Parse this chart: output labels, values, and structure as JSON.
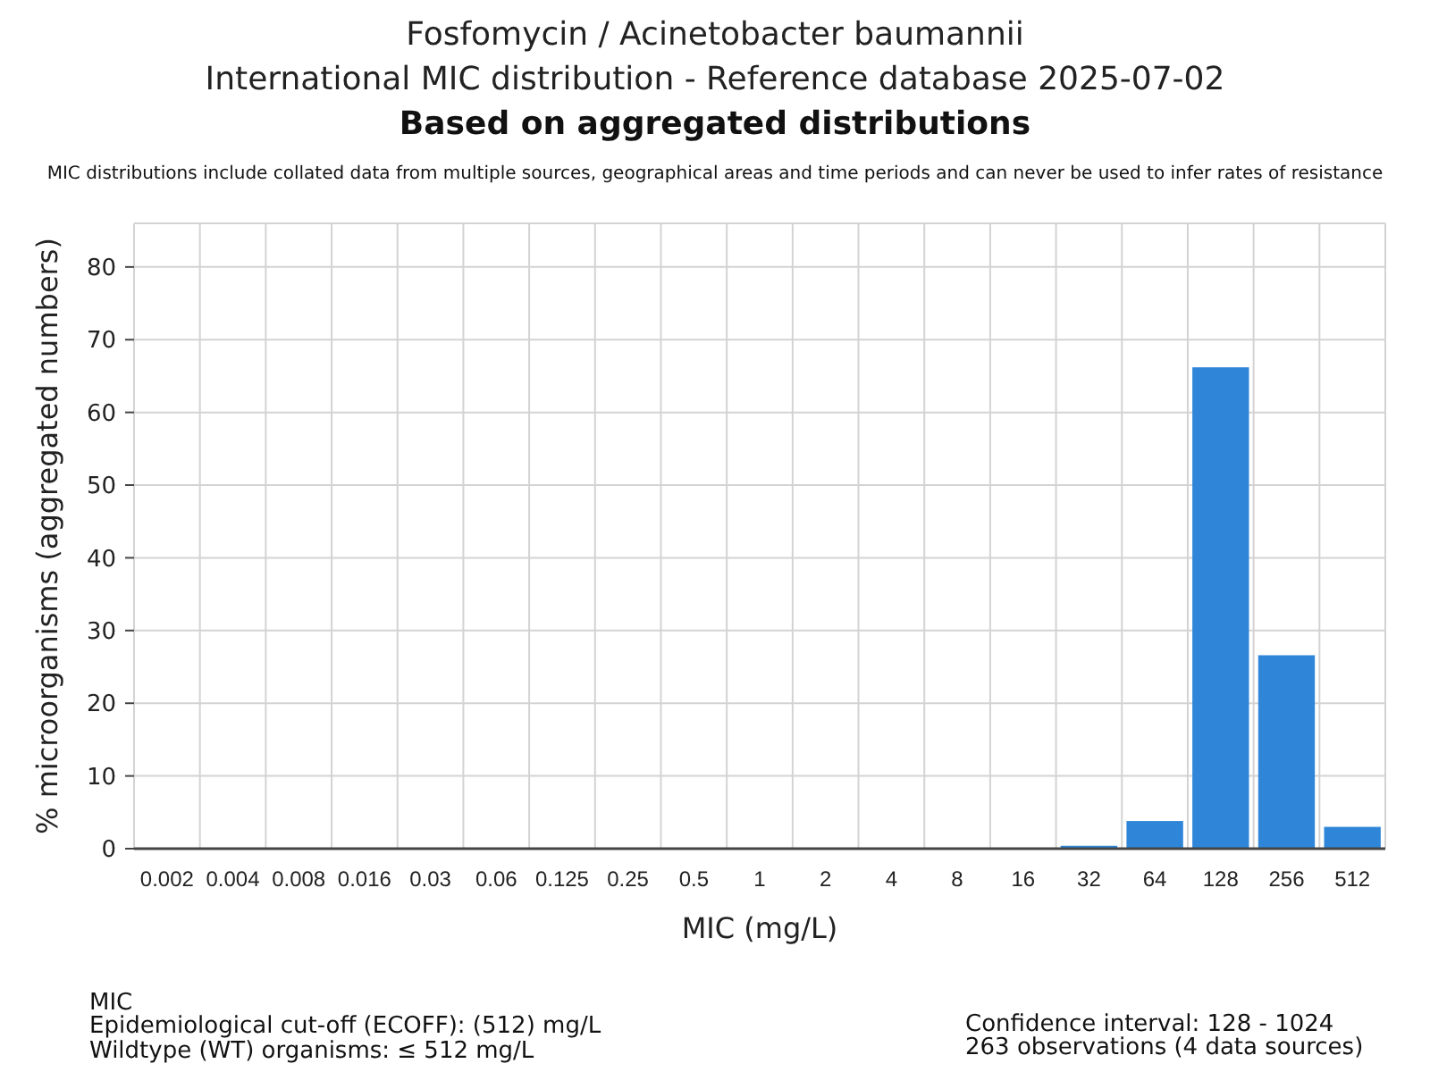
{
  "chart_data": {
    "type": "bar",
    "title": "Fosfomycin / Acinetobacter baumannii",
    "subtitle": "International MIC distribution - Reference database 2025-07-02",
    "annotations": [
      "Based on aggregated distributions",
      "MIC distributions include collated data from multiple sources, geographical areas and time periods and can never be used to infer rates of resistance",
      "MIC",
      "Epidemiological cut-off (ECOFF): (512) mg/L",
      "Wildtype (WT) organisms: ≤ 512 mg/L",
      "Confidence interval: 128 - 1024",
      "263 observations (4 data sources)"
    ],
    "xlabel": "MIC (mg/L)",
    "ylabel": "% microorganisms (aggregated numbers)",
    "categories": [
      "0.002",
      "0.004",
      "0.008",
      "0.016",
      "0.03",
      "0.06",
      "0.125",
      "0.25",
      "0.5",
      "1",
      "2",
      "4",
      "8",
      "16",
      "32",
      "64",
      "128",
      "256",
      "512"
    ],
    "values": [
      0,
      0,
      0,
      0,
      0,
      0,
      0,
      0,
      0,
      0,
      0,
      0,
      0,
      0,
      0.4,
      3.8,
      66.2,
      26.6,
      3.0
    ],
    "color": "#2f86d9",
    "ylim": [
      0,
      86
    ],
    "yticks": [
      0,
      10,
      20,
      30,
      40,
      50,
      60,
      70,
      80
    ],
    "grid": true
  }
}
